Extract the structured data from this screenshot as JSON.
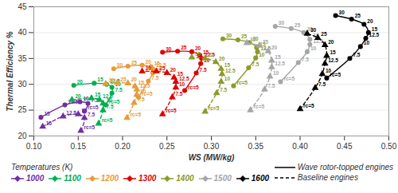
{
  "chart_data": {
    "type": "line",
    "y_label": "Thermal Efficiency %",
    "x_label": "WS (MW/kg)",
    "legend_title": "Temperatures (K)",
    "xlim": [
      0.1,
      0.5
    ],
    "xticks": [
      {
        "value": 0.1,
        "label": "0.10"
      },
      {
        "value": 0.15,
        "label": "0.15"
      },
      {
        "value": 0.2,
        "label": "0.20"
      },
      {
        "value": 0.25,
        "label": "0.25"
      },
      {
        "value": 0.3,
        "label": "0.30"
      },
      {
        "value": 0.35,
        "label": "0.35"
      },
      {
        "value": 0.4,
        "label": "0.40"
      },
      {
        "value": 0.45,
        "label": "0.45"
      },
      {
        "value": 0.5,
        "label": "0.50"
      }
    ],
    "ylim": [
      20,
      45
    ],
    "yticks": [
      20,
      25,
      30,
      35,
      40,
      45
    ],
    "grid": true,
    "engines": [
      {
        "name": "Wave rotor-topped engines",
        "line_style": "solid"
      },
      {
        "name": "Baseline engines",
        "line_style": "dashed"
      }
    ],
    "series": [
      {
        "name": "1000",
        "engine": "Wave rotor-topped engines",
        "color": "#7030a0",
        "line_style": "solid",
        "marker": "circle",
        "x": [
          0.157,
          0.161,
          0.152,
          0.135,
          0.108
        ],
        "values": [
          24.8,
          26.3,
          26.6,
          26.0,
          23.6
        ],
        "ratio_labels": [
          "rc=5",
          "7.5",
          "10",
          "12.5",
          "15"
        ]
      },
      {
        "name": "1000",
        "engine": "Baseline engines",
        "color": "#7030a0",
        "line_style": "dashed",
        "marker": "triangle",
        "x": [
          0.153,
          0.157,
          0.15,
          0.133,
          0.11
        ],
        "values": [
          21.0,
          23.5,
          24.2,
          23.8,
          21.8
        ],
        "ratio_labels": [
          "rc=5",
          "7.5",
          "10",
          "12.5",
          "15"
        ]
      },
      {
        "name": "1100",
        "engine": "Wave rotor-topped engines",
        "color": "#00b050",
        "line_style": "solid",
        "marker": "circle",
        "x": [
          0.181,
          0.188,
          0.188,
          0.182,
          0.168,
          0.145
        ],
        "values": [
          26.0,
          28.3,
          29.4,
          30.0,
          30.2,
          29.8
        ],
        "ratio_labels": [
          "rc=5",
          "7.5",
          "10",
          "12.5",
          "15",
          "20"
        ]
      },
      {
        "name": "1100",
        "engine": "Baseline engines",
        "color": "#00b050",
        "line_style": "dashed",
        "marker": "triangle",
        "x": [
          0.173,
          0.178,
          0.178,
          0.174,
          0.165,
          0.143
        ],
        "values": [
          22.4,
          25.0,
          26.3,
          27.0,
          27.3,
          27.0
        ],
        "ratio_labels": [
          "rc=5",
          "7.5",
          "10",
          "12.5",
          "15",
          "20"
        ]
      },
      {
        "name": "1200",
        "engine": "Wave rotor-topped engines",
        "color": "#e59c3a",
        "line_style": "solid",
        "marker": "circle",
        "x": [
          0.218,
          0.229,
          0.234,
          0.234,
          0.232,
          0.222,
          0.206,
          0.19
        ],
        "values": [
          27.5,
          30.6,
          32.2,
          33.0,
          33.4,
          33.7,
          33.5,
          33.0
        ],
        "ratio_labels": [
          "rc=5",
          "7.5",
          "10",
          "12.5",
          "15",
          "20",
          "25",
          "30"
        ]
      },
      {
        "name": "1200",
        "engine": "Baseline engines",
        "color": "#e59c3a",
        "line_style": "dashed",
        "marker": "triangle",
        "x": [
          0.205,
          0.213,
          0.216,
          0.216,
          0.214,
          0.206,
          0.194,
          0.181
        ],
        "values": [
          23.5,
          26.4,
          28.0,
          29.0,
          29.6,
          30.2,
          30.3,
          30.1
        ],
        "ratio_labels": [
          "rc=5",
          "7.5",
          "10",
          "12.5",
          "15",
          "20",
          "25",
          "30"
        ]
      },
      {
        "name": "1300",
        "engine": "Wave rotor-topped engines",
        "color": "#e00000",
        "line_style": "solid",
        "marker": "circle",
        "x": [
          0.27,
          0.283,
          0.288,
          0.289,
          0.287,
          0.278,
          0.262,
          0.245
        ],
        "values": [
          28.8,
          32.2,
          34.0,
          35.0,
          35.6,
          36.3,
          36.4,
          36.2
        ],
        "ratio_labels": [
          "rc=5",
          "7.5",
          "10",
          "12.5",
          "15",
          "20",
          "25",
          "30"
        ]
      },
      {
        "name": "1300",
        "engine": "Baseline engines",
        "color": "#e00000",
        "line_style": "dashed",
        "marker": "triangle",
        "x": [
          0.245,
          0.256,
          0.26,
          0.26,
          0.258,
          0.25,
          0.238,
          0.222
        ],
        "values": [
          24.2,
          27.5,
          29.4,
          30.5,
          31.3,
          32.2,
          32.5,
          32.5
        ],
        "ratio_labels": [
          "rc=5",
          "7.5",
          "10",
          "12.5",
          "15",
          "20",
          "25",
          "30"
        ]
      },
      {
        "name": "1400",
        "engine": "Wave rotor-topped engines",
        "color": "#8c9a2c",
        "line_style": "solid",
        "marker": "circle",
        "x": [
          0.325,
          0.342,
          0.35,
          0.352,
          0.351,
          0.343,
          0.33,
          0.313
        ],
        "values": [
          29.7,
          33.2,
          35.1,
          36.3,
          37.1,
          38.1,
          38.6,
          38.8
        ],
        "ratio_labels": [
          "rc=5",
          "7.5",
          "10",
          "12.5",
          "15",
          "20",
          "25",
          "30"
        ]
      },
      {
        "name": "1400",
        "engine": "Baseline engines",
        "color": "#8c9a2c",
        "line_style": "dashed",
        "marker": "triangle",
        "x": [
          0.293,
          0.306,
          0.311,
          0.312,
          0.311,
          0.305,
          0.293,
          0.278
        ],
        "values": [
          24.7,
          28.3,
          30.5,
          32.0,
          33.0,
          34.3,
          35.0,
          35.2
        ],
        "ratio_labels": [
          "rc=5",
          "7.5",
          "10",
          "12.5",
          "15",
          "20",
          "25",
          "30"
        ]
      },
      {
        "name": "1500",
        "engine": "Wave rotor-topped engines",
        "color": "#a6a6a6",
        "line_style": "solid",
        "marker": "circle",
        "x": [
          0.378,
          0.398,
          0.408,
          0.411,
          0.411,
          0.404,
          0.39,
          0.372
        ],
        "values": [
          30.5,
          34.2,
          36.3,
          37.7,
          38.7,
          40.0,
          40.8,
          41.2
        ],
        "ratio_labels": [
          "rc=5",
          "7.5",
          "10",
          "12.5",
          "15",
          "20",
          "25",
          "30"
        ]
      },
      {
        "name": "1500",
        "engine": "Baseline engines",
        "color": "#a6a6a6",
        "line_style": "dashed",
        "marker": "triangle",
        "x": [
          0.344,
          0.36,
          0.366,
          0.368,
          0.368,
          0.364,
          0.354,
          0.34
        ],
        "values": [
          25.0,
          29.0,
          31.5,
          33.3,
          34.6,
          36.4,
          37.5,
          38.0
        ],
        "ratio_labels": [
          "rc=5",
          "7.5",
          "10",
          "12.5",
          "15",
          "20",
          "25",
          "30"
        ]
      },
      {
        "name": "1600",
        "engine": "Wave rotor-topped engines",
        "color": "#000000",
        "line_style": "solid",
        "marker": "circle",
        "x": [
          0.43,
          0.456,
          0.468,
          0.474,
          0.477,
          0.472,
          0.458,
          0.44
        ],
        "values": [
          31.2,
          35.0,
          37.3,
          38.9,
          40.0,
          41.6,
          42.6,
          43.3
        ],
        "ratio_labels": [
          "rc=5",
          "7.5",
          "10",
          "12.5",
          "15",
          "20",
          "25",
          "30"
        ]
      },
      {
        "name": "1600",
        "engine": "Baseline engines",
        "color": "#000000",
        "line_style": "dashed",
        "marker": "triangle",
        "x": [
          0.4,
          0.417,
          0.425,
          0.428,
          0.43,
          0.428,
          0.42,
          0.408
        ],
        "values": [
          25.2,
          29.3,
          32.0,
          34.0,
          35.5,
          37.6,
          39.0,
          39.8
        ],
        "ratio_labels": [
          "rc=5",
          "7.5",
          "10",
          "12.5",
          "15",
          "20",
          "25",
          "30"
        ]
      }
    ]
  }
}
